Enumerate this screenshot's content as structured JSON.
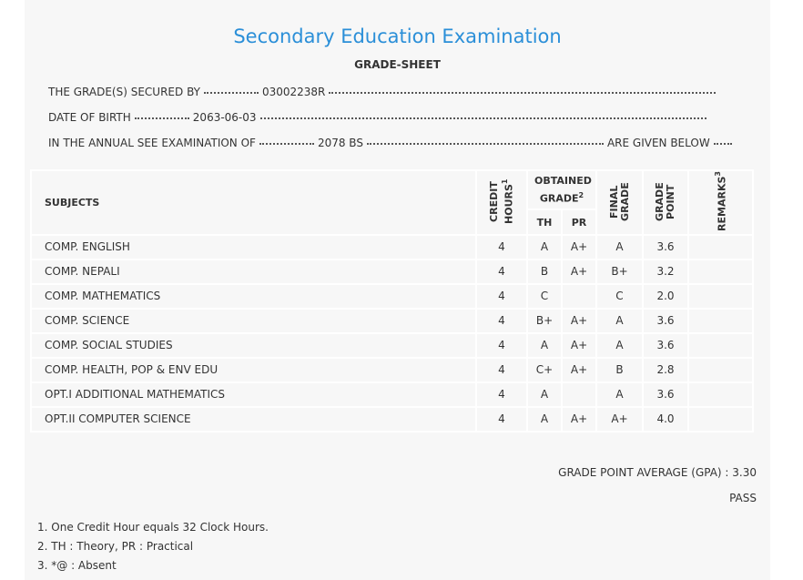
{
  "title": "Secondary Education Examination",
  "subtitle": "GRADE-SHEET",
  "info": [
    {
      "label": "THE GRADE(S) SECURED BY",
      "value": "03002238R"
    },
    {
      "label": "DATE OF BIRTH",
      "value": "2063-06-03"
    },
    {
      "label": "IN THE ANNUAL SEE EXAMINATION OF",
      "value": "2078 BS",
      "suffix": "ARE GIVEN BELOW"
    }
  ],
  "table": {
    "headers": {
      "subjects": "SUBJECTS",
      "credit": {
        "text": "CREDIT HOURS",
        "sup": "1"
      },
      "obtained": {
        "text": "OBTAINED GRADE",
        "sup": "2"
      },
      "th": "TH",
      "pr": "PR",
      "final": "FINAL GRADE",
      "point": "GRADE POINT",
      "remarks": {
        "text": "REMARKS",
        "sup": "3"
      }
    },
    "rows": [
      [
        "COMP. ENGLISH",
        "4",
        "A",
        "A+",
        "A",
        "3.6"
      ],
      [
        "COMP. NEPALI",
        "4",
        "B",
        "A+",
        "B+",
        "3.2"
      ],
      [
        "COMP. MATHEMATICS",
        "4",
        "C",
        null,
        "C",
        "2.0"
      ],
      [
        "COMP. SCIENCE",
        "4",
        "B+",
        "A+",
        "A",
        "3.6"
      ],
      [
        "COMP. SOCIAL STUDIES",
        "4",
        "A",
        "A+",
        "A",
        "3.6"
      ],
      [
        "COMP. HEALTH, POP & ENV EDU",
        "4",
        "C+",
        "A+",
        "B",
        "2.8"
      ],
      [
        "OPT.I ADDITIONAL MATHEMATICS",
        "4",
        "A",
        null,
        "A",
        "3.6"
      ],
      [
        "OPT.II COMPUTER SCIENCE",
        "4",
        "A",
        "A+",
        "A+",
        "4.0"
      ]
    ]
  },
  "gpa": {
    "label": "GRADE POINT AVERAGE (GPA) :",
    "value": "3.30"
  },
  "result": "PASS",
  "notes": [
    "1. One Credit Hour equals 32 Clock Hours.",
    "2. TH : Theory, PR : Practical",
    "3. *@ : Absent"
  ]
}
